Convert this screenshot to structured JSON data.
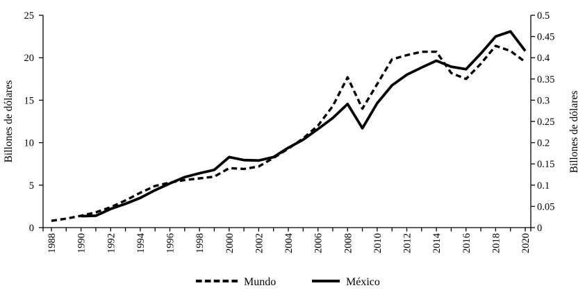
{
  "chart_data": {
    "type": "line",
    "grid": false,
    "background": "#ffffff",
    "colors": {
      "line": "#000000",
      "text": "#000000"
    },
    "left_axis": {
      "label": "Billones de dólares",
      "min": 0,
      "max": 25,
      "tick_values": [
        0,
        5,
        10,
        15,
        20,
        25
      ],
      "tick_labels": [
        "0",
        "5",
        "10",
        "15",
        "20",
        "25"
      ]
    },
    "right_axis": {
      "label": "Billones de dólares",
      "min": 0,
      "max": 0.5,
      "tick_values": [
        0,
        0.05,
        0.1,
        0.15,
        0.2,
        0.25,
        0.3,
        0.35,
        0.4,
        0.45,
        0.5
      ],
      "tick_labels": [
        "0",
        "0.05",
        "0.1",
        "0.15",
        "0.2",
        "0.25",
        "0.3",
        "0.35",
        "0.4",
        "0.45",
        "0.5"
      ]
    },
    "x_axis": {
      "min": 1988,
      "max": 2020,
      "tick_step": 1,
      "label_step": 2,
      "labels": [
        "1988",
        "1990",
        "1992",
        "1994",
        "1996",
        "1998",
        "2000",
        "2002",
        "2004",
        "2006",
        "2008",
        "2010",
        "2012",
        "2014",
        "2016",
        "2018",
        "2020"
      ]
    },
    "series": [
      {
        "name": "Mundo",
        "axis": "left",
        "line_style": "dashed",
        "x": [
          1988,
          1989,
          1990,
          1991,
          1992,
          1993,
          1994,
          1995,
          1996,
          1997,
          1998,
          1999,
          2000,
          2001,
          2002,
          2003,
          2004,
          2005,
          2006,
          2007,
          2008,
          2009,
          2010,
          2011,
          2012,
          2013,
          2014,
          2015,
          2016,
          2017,
          2018,
          2019,
          2020
        ],
        "values": [
          0.8,
          1.05,
          1.4,
          1.8,
          2.4,
          3.2,
          4.1,
          4.9,
          5.3,
          5.6,
          5.8,
          6.0,
          7.0,
          6.9,
          7.2,
          8.2,
          9.3,
          10.5,
          12.0,
          14.3,
          17.7,
          14.0,
          16.9,
          19.8,
          20.3,
          20.7,
          20.7,
          18.2,
          17.5,
          19.3,
          21.4,
          20.8,
          19.5
        ]
      },
      {
        "name": "México",
        "axis": "right",
        "line_style": "solid",
        "x": [
          1990,
          1991,
          1992,
          1993,
          1994,
          1995,
          1996,
          1997,
          1998,
          1999,
          2000,
          2001,
          2002,
          2003,
          2004,
          2005,
          2006,
          2007,
          2008,
          2009,
          2010,
          2011,
          2012,
          2013,
          2014,
          2015,
          2016,
          2017,
          2018,
          2019,
          2020
        ],
        "values": [
          0.027,
          0.028,
          0.044,
          0.056,
          0.07,
          0.088,
          0.104,
          0.119,
          0.128,
          0.136,
          0.166,
          0.159,
          0.158,
          0.166,
          0.188,
          0.207,
          0.232,
          0.258,
          0.291,
          0.234,
          0.293,
          0.335,
          0.36,
          0.377,
          0.393,
          0.379,
          0.373,
          0.41,
          0.45,
          0.462,
          0.416
        ]
      }
    ],
    "legend": [
      {
        "label": "Mundo",
        "style": "dashed"
      },
      {
        "label": "México",
        "style": "solid"
      }
    ]
  }
}
